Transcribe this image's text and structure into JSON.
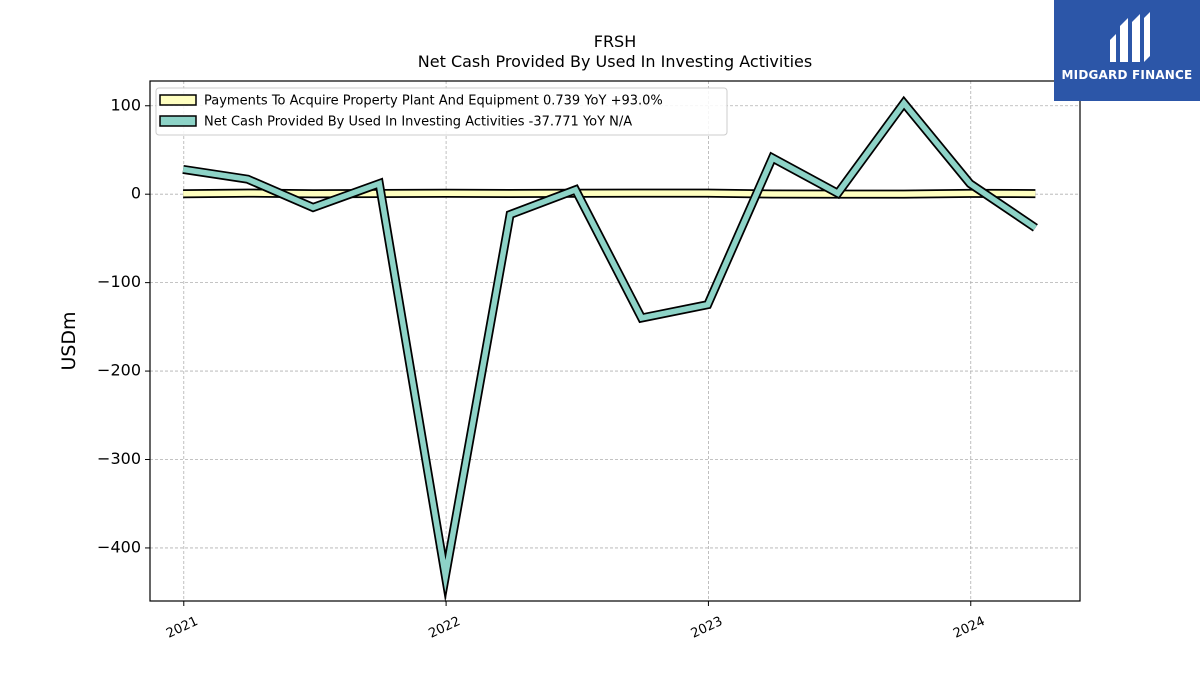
{
  "logo": {
    "text": "MIDGARD FINANCE",
    "background": "#2c56a8"
  },
  "chart_data": {
    "type": "line",
    "title": "FRSH",
    "subtitle": "Net Cash Provided By Used In Investing Activities",
    "xlabel": "",
    "ylabel": "USDm",
    "ylim": [
      -460,
      128
    ],
    "xlim": [
      "2020-11-15",
      "2024-06-01"
    ],
    "yticks": [
      100,
      0,
      -100,
      -200,
      -300,
      -400
    ],
    "ytick_labels": [
      "100",
      "0",
      "−100",
      "−200",
      "−300",
      "−400"
    ],
    "xticks": [
      "2021-01-01",
      "2022-01-01",
      "2023-01-01",
      "2024-01-01"
    ],
    "xtick_labels": [
      "2021",
      "2022",
      "2023",
      "2024"
    ],
    "grid": true,
    "legend_position": "top-left",
    "x": [
      "2020-12-31",
      "2021-03-31",
      "2021-06-30",
      "2021-09-30",
      "2021-12-31",
      "2022-03-31",
      "2022-06-30",
      "2022-09-30",
      "2022-12-31",
      "2023-03-31",
      "2023-06-30",
      "2023-09-30",
      "2023-12-31",
      "2024-03-31"
    ],
    "series": [
      {
        "name": "Payments To Acquire Property Plant And Equipment  0.739 YoY +93.0%",
        "color": "#ffffc0",
        "values": [
          0.4,
          1.2,
          0.6,
          0.8,
          1.0,
          0.8,
          1.1,
          1.2,
          1.2,
          0.2,
          0.1,
          0.1,
          0.9,
          0.7
        ]
      },
      {
        "name": "Net Cash Provided By Used In Investing Activities  -37.771 YoY N/A",
        "color": "#8dd3c7",
        "values": [
          28,
          17,
          -15,
          12,
          -432,
          -23,
          5,
          -140,
          -125,
          41,
          1,
          103,
          12,
          -38
        ]
      }
    ]
  }
}
